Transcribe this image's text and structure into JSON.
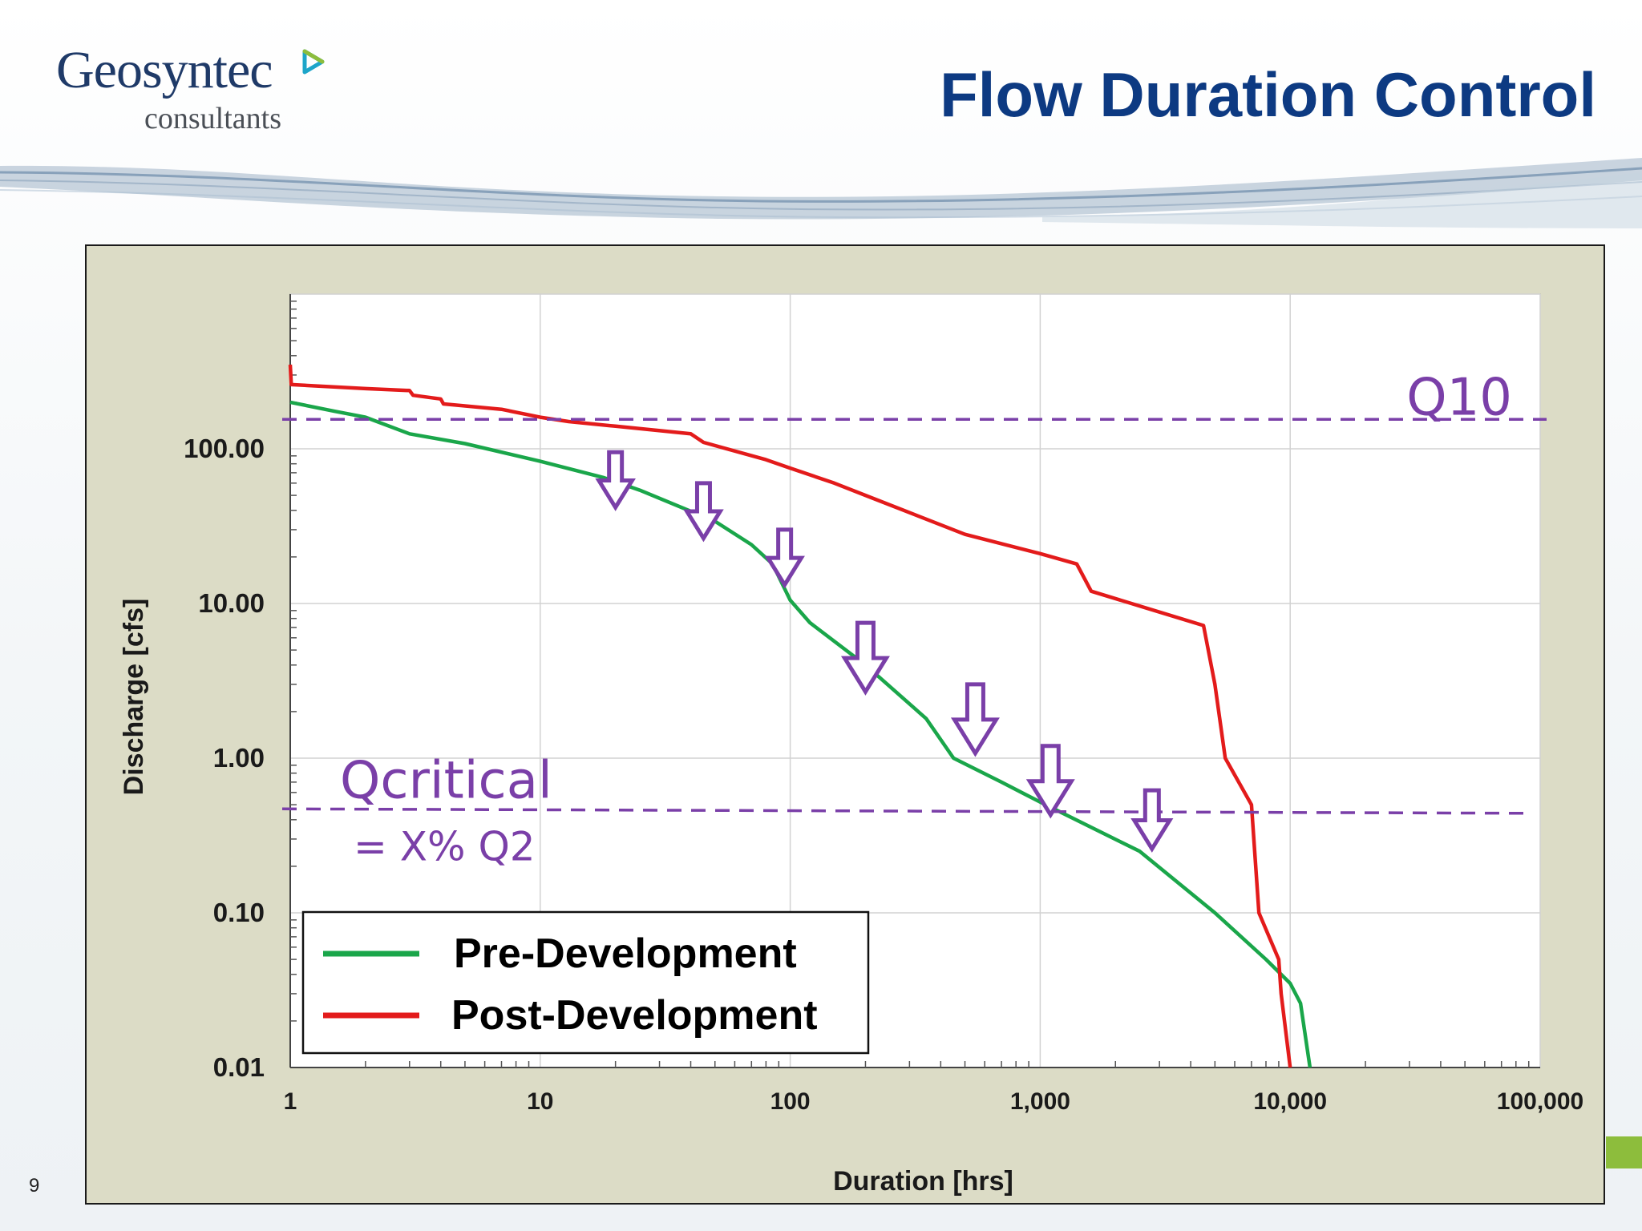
{
  "slide": {
    "title": "Flow Duration Control",
    "number": "9",
    "logo": {
      "name": "Geosyntec",
      "subtitle": "consultants"
    }
  },
  "colors": {
    "title": "#0d3a82",
    "pre_development": "#1aa64a",
    "post_development": "#e31b1b",
    "threshold": "#7a3fa8",
    "plot_frame_bg": "#dcdcc6"
  },
  "chart_data": {
    "type": "line",
    "xlabel": "Duration [hrs]",
    "ylabel": "Discharge [cfs]",
    "x_scale": "log",
    "y_scale": "log",
    "xlim": [
      1,
      100000
    ],
    "ylim": [
      0.01,
      1000
    ],
    "x_ticks": [
      1,
      10,
      100,
      1000,
      10000,
      100000
    ],
    "x_tick_labels": [
      "1",
      "10",
      "100",
      "1,000",
      "10,000",
      "100,000"
    ],
    "y_ticks": [
      0.01,
      0.1,
      1,
      10,
      100
    ],
    "y_tick_labels": [
      "0.01",
      "0.10",
      "1.00",
      "10.00",
      "100.00"
    ],
    "grid": true,
    "legend_position": "bottom-left",
    "series": [
      {
        "name": "Pre-Development",
        "color": "#1aa64a",
        "points": [
          [
            1,
            200
          ],
          [
            1.5,
            175
          ],
          [
            2,
            160
          ],
          [
            3,
            125
          ],
          [
            5,
            108
          ],
          [
            10,
            83
          ],
          [
            18,
            65
          ],
          [
            25,
            54
          ],
          [
            50,
            34
          ],
          [
            70,
            24
          ],
          [
            85,
            18
          ],
          [
            100,
            10.5
          ],
          [
            120,
            7.5
          ],
          [
            200,
            4
          ],
          [
            350,
            1.8
          ],
          [
            450,
            1.0
          ],
          [
            700,
            0.7
          ],
          [
            1000,
            0.52
          ],
          [
            2500,
            0.25
          ],
          [
            5000,
            0.1
          ],
          [
            8000,
            0.05
          ],
          [
            10000,
            0.035
          ],
          [
            11000,
            0.026
          ],
          [
            12000,
            0.01
          ]
        ]
      },
      {
        "name": "Post-Development",
        "color": "#e31b1b",
        "points": [
          [
            1,
            350
          ],
          [
            1.01,
            260
          ],
          [
            2,
            245
          ],
          [
            3,
            238
          ],
          [
            3.1,
            222
          ],
          [
            4,
            210
          ],
          [
            4.1,
            195
          ],
          [
            7,
            180
          ],
          [
            10,
            160
          ],
          [
            13,
            150
          ],
          [
            20,
            140
          ],
          [
            40,
            125
          ],
          [
            45,
            110
          ],
          [
            80,
            85
          ],
          [
            100,
            75
          ],
          [
            150,
            60
          ],
          [
            200,
            50
          ],
          [
            500,
            28
          ],
          [
            1000,
            21
          ],
          [
            1400,
            18
          ],
          [
            1600,
            12
          ],
          [
            4500,
            7.2
          ],
          [
            5000,
            3
          ],
          [
            5500,
            1.0
          ],
          [
            7000,
            0.5
          ],
          [
            7500,
            0.1
          ],
          [
            9000,
            0.05
          ],
          [
            9200,
            0.03
          ],
          [
            10000,
            0.01
          ]
        ]
      }
    ],
    "reference_lines": [
      {
        "label": "Q10",
        "y": 155
      },
      {
        "label": "Qcritical",
        "sublabel": "= X% Q2",
        "y_start": 0.47,
        "y_end": 0.44
      }
    ],
    "annotations": [
      {
        "type": "down-arrow",
        "x": 20,
        "y": 95
      },
      {
        "type": "down-arrow",
        "x": 45,
        "y": 60
      },
      {
        "type": "down-arrow",
        "x": 95,
        "y": 30
      },
      {
        "type": "down-arrow",
        "x": 200,
        "y": 7.5
      },
      {
        "type": "down-arrow",
        "x": 550,
        "y": 3
      },
      {
        "type": "down-arrow",
        "x": 1100,
        "y": 1.2
      },
      {
        "type": "down-arrow",
        "x": 2800,
        "y": 0.62
      }
    ]
  }
}
